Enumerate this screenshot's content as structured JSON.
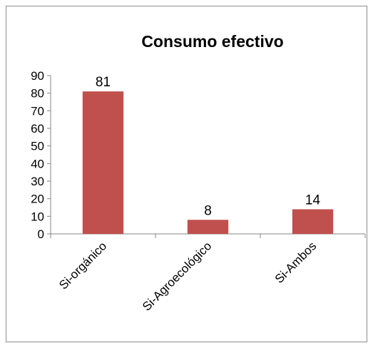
{
  "chart_data": {
    "type": "bar",
    "title": "Consumo efectivo",
    "categories": [
      "Si-orgánico",
      "Si-Agroecológico",
      "Si-Ambos"
    ],
    "values": [
      81,
      8,
      14
    ],
    "data_labels": [
      "81",
      "8",
      "14"
    ],
    "ylim": [
      0,
      90
    ],
    "yticks": [
      0,
      10,
      20,
      30,
      40,
      50,
      60,
      70,
      80,
      90
    ],
    "xlabel": "",
    "ylabel": "",
    "grid": false,
    "legend": "none",
    "bar_color": "#c0504d"
  }
}
